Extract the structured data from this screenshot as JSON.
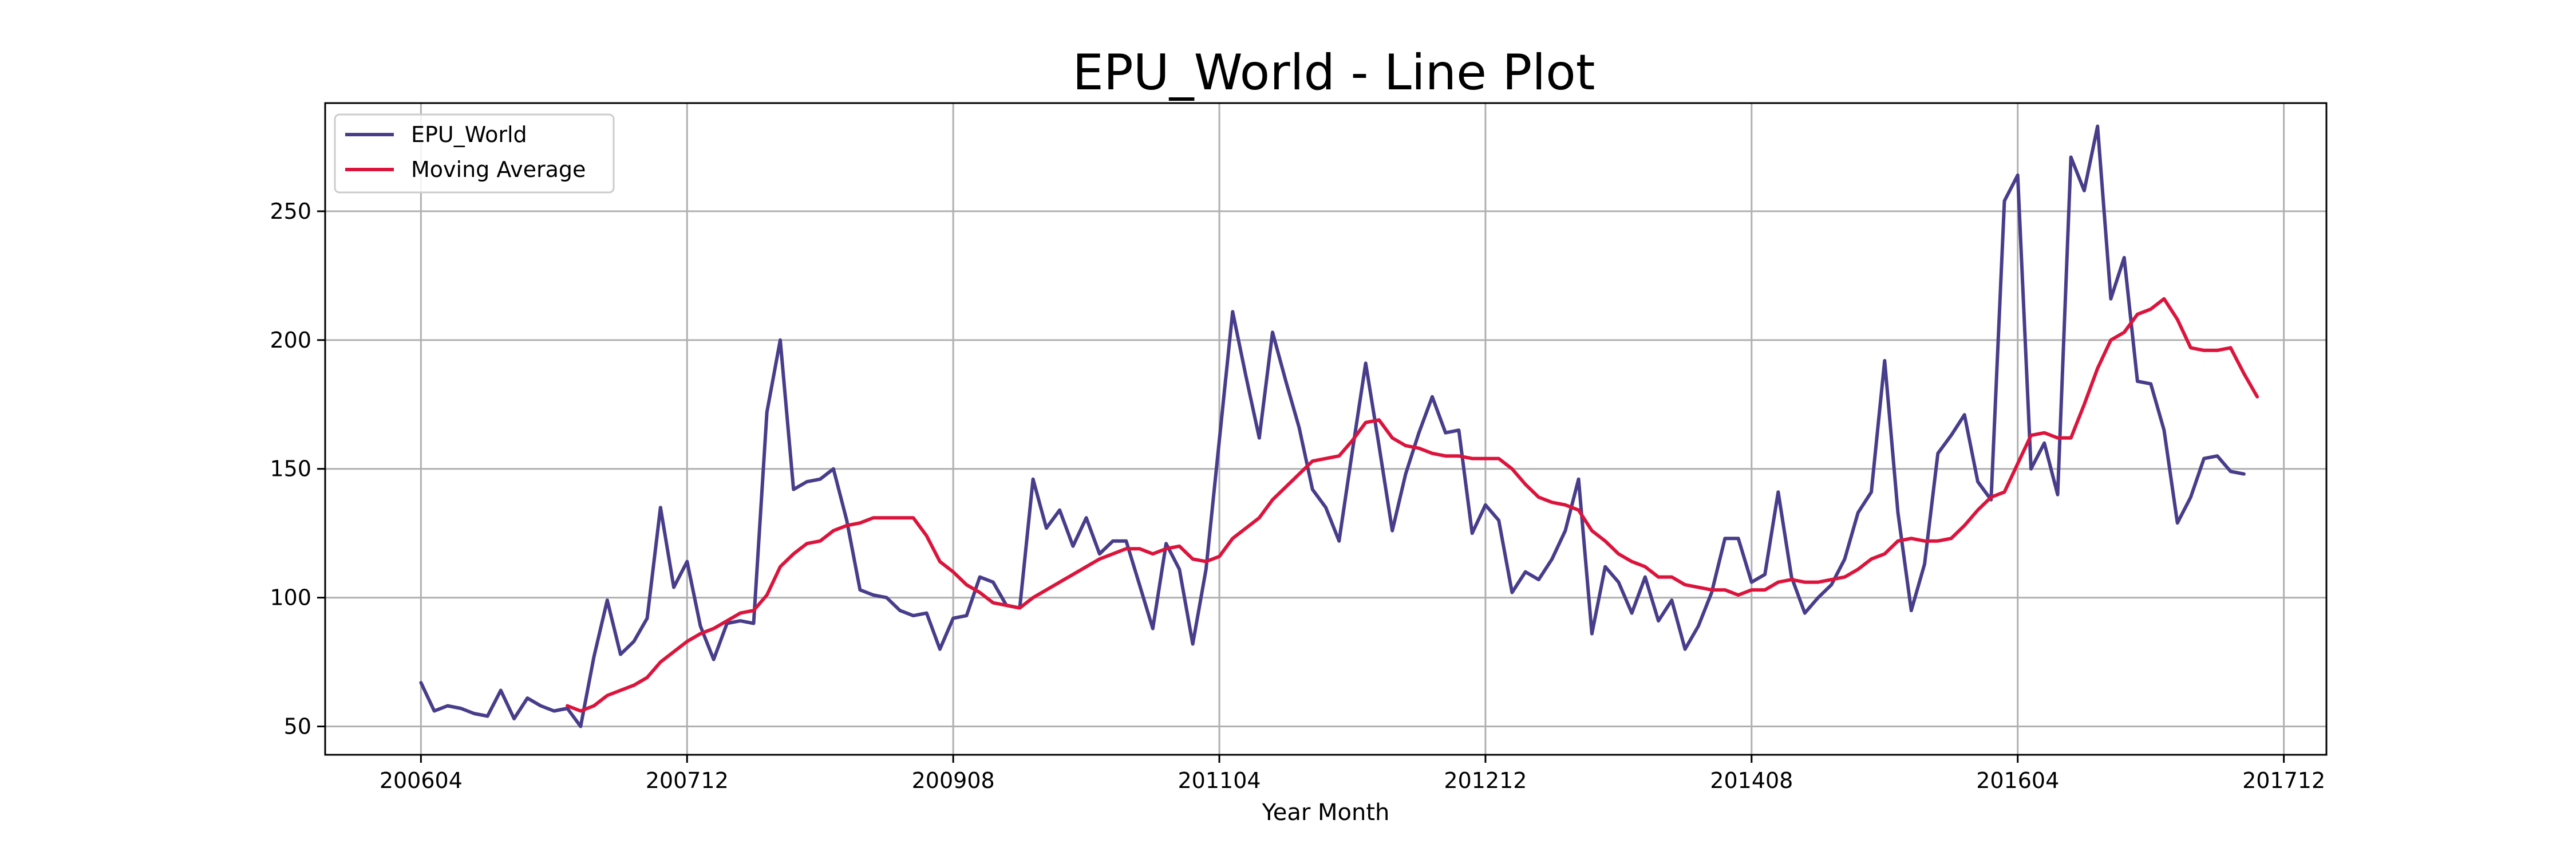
{
  "chart_data": {
    "type": "line",
    "title": "EPU_World - Line Plot",
    "xlabel": "Year Month",
    "ylabel": "",
    "xlim": [
      -7.2,
      143.2
    ],
    "ylim": [
      39,
      292
    ],
    "x_ticks": [
      {
        "index": 0,
        "label": "200604"
      },
      {
        "index": 20,
        "label": "200712"
      },
      {
        "index": 40,
        "label": "200908"
      },
      {
        "index": 60,
        "label": "201104"
      },
      {
        "index": 80,
        "label": "201212"
      },
      {
        "index": 100,
        "label": "201408"
      },
      {
        "index": 120,
        "label": "201604"
      },
      {
        "index": 140,
        "label": "201712"
      }
    ],
    "y_ticks": [
      50,
      100,
      150,
      200,
      250
    ],
    "grid": true,
    "legend_position": "top-left",
    "colors": {
      "EPU_World": "#483d8b",
      "Moving Average": "#dc143c"
    },
    "series": [
      {
        "name": "EPU_World",
        "start_index": 0,
        "values": [
          67,
          56,
          58,
          57,
          55,
          54,
          64,
          53,
          61,
          58,
          56,
          57,
          50,
          77,
          99,
          78,
          83,
          92,
          135,
          104,
          114,
          89,
          76,
          90,
          91,
          90,
          172,
          200,
          142,
          145,
          146,
          150,
          130,
          103,
          101,
          100,
          95,
          93,
          94,
          80,
          92,
          93,
          108,
          106,
          97,
          96,
          146,
          127,
          134,
          120,
          131,
          117,
          122,
          122,
          105,
          88,
          121,
          111,
          82,
          111,
          161,
          211,
          186,
          162,
          203,
          184,
          166,
          142,
          135,
          122,
          157,
          191,
          159,
          126,
          148,
          164,
          178,
          164,
          165,
          125,
          136,
          130,
          102,
          110,
          107,
          115,
          126,
          146,
          86,
          112,
          106,
          94,
          108,
          91,
          99,
          80,
          89,
          102,
          123,
          123,
          106,
          109,
          141,
          108,
          94,
          100,
          105,
          115,
          133,
          141,
          192,
          133,
          95,
          113,
          156,
          163,
          171,
          145,
          138,
          254,
          264,
          150,
          160,
          140,
          271,
          258,
          283,
          216,
          232,
          184,
          183,
          165,
          129,
          139,
          154,
          155,
          149,
          148
        ]
      },
      {
        "name": "Moving Average",
        "start_index": 11,
        "values": [
          58,
          56,
          58,
          62,
          64,
          66,
          69,
          75,
          79,
          83,
          86,
          88,
          91,
          94,
          95,
          101,
          112,
          117,
          121,
          122,
          126,
          128,
          129,
          131,
          131,
          131,
          131,
          124,
          114,
          110,
          105,
          102,
          98,
          97,
          96,
          100,
          103,
          106,
          109,
          112,
          115,
          117,
          119,
          119,
          117,
          119,
          120,
          115,
          114,
          116,
          123,
          127,
          131,
          138,
          143,
          148,
          153,
          154,
          155,
          161,
          168,
          169,
          162,
          159,
          158,
          156,
          155,
          155,
          154,
          154,
          154,
          150,
          144,
          139,
          137,
          136,
          134,
          126,
          122,
          117,
          114,
          112,
          108,
          108,
          105,
          104,
          103,
          103,
          101,
          103,
          103,
          106,
          107,
          106,
          106,
          107,
          108,
          111,
          115,
          117,
          122,
          123,
          122,
          122,
          123,
          128,
          134,
          139,
          141,
          152,
          163,
          164,
          162,
          162,
          175,
          189,
          200,
          203,
          210,
          212,
          216,
          208,
          197,
          196,
          196,
          197,
          187,
          178
        ]
      }
    ]
  }
}
